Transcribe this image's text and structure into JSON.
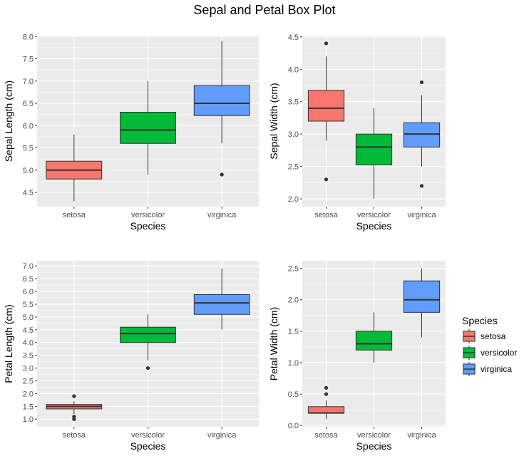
{
  "title": "Sepal and Petal Box Plot",
  "chart_data": [
    {
      "type": "box",
      "xlabel": "Species",
      "ylabel": "Sepal Length (cm)",
      "categories": [
        "setosa",
        "versicolor",
        "virginica"
      ],
      "ylim": [
        4.18,
        8.02
      ],
      "yticks": [
        4.5,
        5.0,
        5.5,
        6.0,
        6.5,
        7.0,
        7.5,
        8.0
      ],
      "ytick_labels": [
        "4.5",
        "5.0",
        "5.5",
        "6.0",
        "6.5",
        "7.0",
        "7.5",
        "8.0"
      ],
      "boxes": [
        {
          "category": "setosa",
          "whisker_low": 4.3,
          "q1": 4.8,
          "median": 5.0,
          "q3": 5.2,
          "whisker_high": 5.8,
          "outliers": []
        },
        {
          "category": "versicolor",
          "whisker_low": 4.9,
          "q1": 5.6,
          "median": 5.9,
          "q3": 6.3,
          "whisker_high": 7.0,
          "outliers": []
        },
        {
          "category": "virginica",
          "whisker_low": 5.6,
          "q1": 6.225,
          "median": 6.5,
          "q3": 6.9,
          "whisker_high": 7.9,
          "outliers": [
            4.9
          ]
        }
      ]
    },
    {
      "type": "box",
      "xlabel": "Species",
      "ylabel": "Sepal Width (cm)",
      "categories": [
        "setosa",
        "versicolor",
        "virginica"
      ],
      "ylim": [
        1.88,
        4.52
      ],
      "yticks": [
        2.0,
        2.5,
        3.0,
        3.5,
        4.0,
        4.5
      ],
      "ytick_labels": [
        "2.0",
        "2.5",
        "3.0",
        "3.5",
        "4.0",
        "4.5"
      ],
      "boxes": [
        {
          "category": "setosa",
          "whisker_low": 2.9,
          "q1": 3.2,
          "median": 3.4,
          "q3": 3.675,
          "whisker_high": 4.2,
          "outliers": [
            2.3,
            4.4
          ]
        },
        {
          "category": "versicolor",
          "whisker_low": 2.0,
          "q1": 2.525,
          "median": 2.8,
          "q3": 3.0,
          "whisker_high": 3.4,
          "outliers": []
        },
        {
          "category": "virginica",
          "whisker_low": 2.5,
          "q1": 2.8,
          "median": 3.0,
          "q3": 3.175,
          "whisker_high": 3.6,
          "outliers": [
            2.2,
            3.8
          ]
        }
      ]
    },
    {
      "type": "box",
      "xlabel": "Species",
      "ylabel": "Petal Length (cm)",
      "categories": [
        "setosa",
        "versicolor",
        "virginica"
      ],
      "ylim": [
        0.7,
        7.2
      ],
      "yticks": [
        1.0,
        1.5,
        2.0,
        2.5,
        3.0,
        3.5,
        4.0,
        4.5,
        5.0,
        5.5,
        6.0,
        6.5,
        7.0
      ],
      "ytick_labels": [
        "1.0",
        "1.5",
        "2.0",
        "2.5",
        "3.0",
        "3.5",
        "4.0",
        "4.5",
        "5.0",
        "5.5",
        "6.0",
        "6.5",
        "7.0"
      ],
      "boxes": [
        {
          "category": "setosa",
          "whisker_low": 1.2,
          "q1": 1.4,
          "median": 1.5,
          "q3": 1.575,
          "whisker_high": 1.7,
          "outliers": [
            1.0,
            1.1,
            1.9
          ]
        },
        {
          "category": "versicolor",
          "whisker_low": 3.3,
          "q1": 4.0,
          "median": 4.35,
          "q3": 4.6,
          "whisker_high": 5.1,
          "outliers": [
            3.0
          ]
        },
        {
          "category": "virginica",
          "whisker_low": 4.5,
          "q1": 5.1,
          "median": 5.55,
          "q3": 5.875,
          "whisker_high": 6.9,
          "outliers": []
        }
      ]
    },
    {
      "type": "box",
      "xlabel": "Species",
      "ylabel": "Petal Width (cm)",
      "categories": [
        "setosa",
        "versicolor",
        "virginica"
      ],
      "ylim": [
        -0.02,
        2.62
      ],
      "yticks": [
        0.0,
        0.5,
        1.0,
        1.5,
        2.0,
        2.5
      ],
      "ytick_labels": [
        "0.0",
        "0.5",
        "1.0",
        "1.5",
        "2.0",
        "2.5"
      ],
      "boxes": [
        {
          "category": "setosa",
          "whisker_low": 0.1,
          "q1": 0.2,
          "median": 0.2,
          "q3": 0.3,
          "whisker_high": 0.4,
          "outliers": [
            0.5,
            0.6
          ]
        },
        {
          "category": "versicolor",
          "whisker_low": 1.0,
          "q1": 1.2,
          "median": 1.3,
          "q3": 1.5,
          "whisker_high": 1.8,
          "outliers": []
        },
        {
          "category": "virginica",
          "whisker_low": 1.4,
          "q1": 1.8,
          "median": 2.0,
          "q3": 2.3,
          "whisker_high": 2.5,
          "outliers": []
        }
      ]
    }
  ],
  "legend": {
    "title": "Species",
    "placement": "right",
    "items": [
      {
        "label": "setosa",
        "color": "#F8766D"
      },
      {
        "label": "versicolor",
        "color": "#00BA38"
      },
      {
        "label": "virginica",
        "color": "#619CFF"
      }
    ]
  },
  "colors": {
    "setosa": "#F8766D",
    "versicolor": "#00BA38",
    "virginica": "#619CFF",
    "panel_background": "#EBEBEB",
    "grid": "#FFFFFF"
  }
}
